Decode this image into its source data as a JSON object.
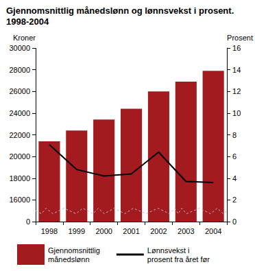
{
  "chart_data": {
    "type": "bar",
    "title": "Gjennomsnittlig månedslønn og lønnsvekst i prosent.\n1998-2004",
    "y_label": "Kroner",
    "y2_label": "Prosent",
    "categories": [
      "1998",
      "1999",
      "2000",
      "2001",
      "2002",
      "2003",
      "2004"
    ],
    "series": [
      {
        "name": "Gjennomsnittlig\nmånedslønn",
        "type": "bar",
        "color": "#a31a1f",
        "values": [
          21400,
          22400,
          23400,
          24400,
          26000,
          26900,
          27900
        ]
      },
      {
        "name": "Lønnsvekst i\nprosent fra året før",
        "type": "line",
        "color": "#000000",
        "axis": "y2",
        "values": [
          7.1,
          4.8,
          4.2,
          4.4,
          6.4,
          3.7,
          3.6
        ]
      }
    ],
    "ylim": [
      0,
      30000
    ],
    "yticks": [
      0,
      16000,
      18000,
      20000,
      22000,
      24000,
      26000,
      28000,
      30000
    ],
    "y2lim": [
      0,
      16
    ],
    "y2ticks": [
      0,
      2,
      4,
      6,
      8,
      10,
      12,
      14,
      16
    ],
    "grid": false,
    "legend": "bottom"
  }
}
